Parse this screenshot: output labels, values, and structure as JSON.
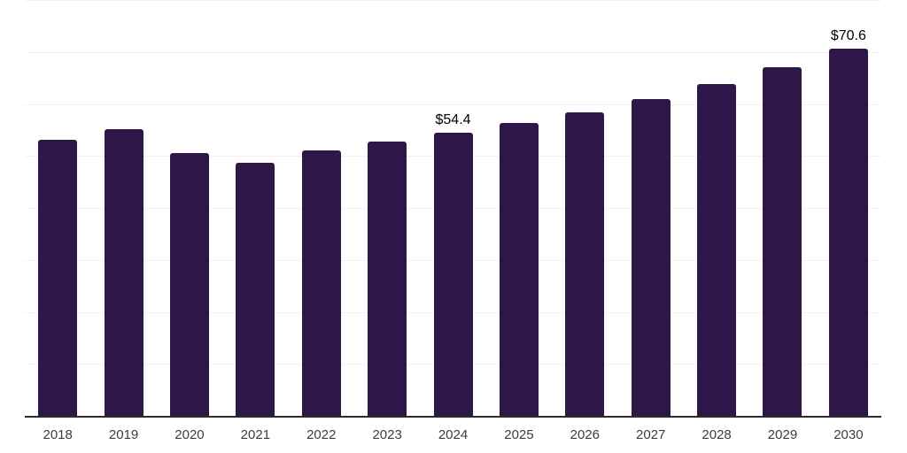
{
  "chart_data": {
    "type": "bar",
    "title": "",
    "xlabel": "",
    "ylabel": "",
    "categories": [
      "2018",
      "2019",
      "2020",
      "2021",
      "2022",
      "2023",
      "2024",
      "2025",
      "2026",
      "2027",
      "2028",
      "2029",
      "2030"
    ],
    "values": [
      53.1,
      55.2,
      50.6,
      48.7,
      51.1,
      52.7,
      54.4,
      56.3,
      58.4,
      61.0,
      63.8,
      67.1,
      70.6
    ],
    "bar_labels": [
      "",
      "",
      "",
      "",
      "",
      "",
      "$54.4",
      "",
      "",
      "",
      "",
      "",
      "$70.6"
    ],
    "ylim": [
      0,
      80
    ],
    "gridline_step": 10,
    "grid": true,
    "legend": false,
    "currency_prefix": "$",
    "colors": {
      "bar": "#2E1648",
      "axis_line": "#2B2B2B",
      "gridline": "#F2F2F2",
      "tick_label": "#3C3C3C",
      "data_label": "#000000",
      "background": "#FFFFFF"
    }
  }
}
